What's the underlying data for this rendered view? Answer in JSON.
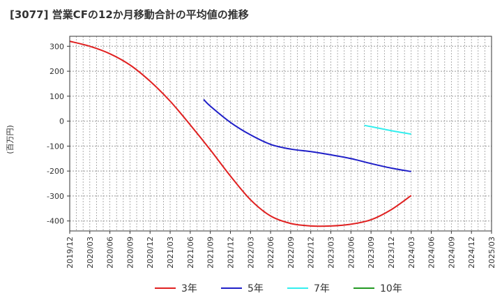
{
  "page": {
    "title": "[3077]  営業CFの12か月移動合計の平均値の推移"
  },
  "chart_data": {
    "type": "line",
    "title": "[3077]  営業CFの12か月移動合計の平均値の推移",
    "ylabel": "(百万円)",
    "xlabel": "",
    "ylim": [
      -440,
      340
    ],
    "yticks": [
      300,
      200,
      100,
      0,
      -100,
      -200,
      -300,
      -400
    ],
    "x_ticks": [
      "2019/12",
      "2020/03",
      "2020/06",
      "2020/09",
      "2020/12",
      "2021/03",
      "2021/06",
      "2021/09",
      "2021/12",
      "2022/03",
      "2022/06",
      "2022/09",
      "2022/12",
      "2023/03",
      "2023/06",
      "2023/09",
      "2023/12",
      "2024/03",
      "2024/06",
      "2024/09",
      "2024/12",
      "2025/03"
    ],
    "grid": true,
    "legend_position": "bottom",
    "series": [
      {
        "name": "3年",
        "color": "#e02020",
        "points": [
          [
            "2019/12",
            320
          ],
          [
            "2020/03",
            300
          ],
          [
            "2020/06",
            270
          ],
          [
            "2020/09",
            225
          ],
          [
            "2020/12",
            160
          ],
          [
            "2021/03",
            80
          ],
          [
            "2021/06",
            -15
          ],
          [
            "2021/09",
            -115
          ],
          [
            "2021/12",
            -220
          ],
          [
            "2022/03",
            -315
          ],
          [
            "2022/06",
            -380
          ],
          [
            "2022/09",
            -410
          ],
          [
            "2022/12",
            -420
          ],
          [
            "2023/03",
            -420
          ],
          [
            "2023/06",
            -413
          ],
          [
            "2023/09",
            -395
          ],
          [
            "2023/12",
            -355
          ],
          [
            "2024/03",
            -298
          ]
        ]
      },
      {
        "name": "5年",
        "color": "#1f1fc8",
        "points": [
          [
            "2021/08",
            87
          ],
          [
            "2021/09",
            60
          ],
          [
            "2021/12",
            -5
          ],
          [
            "2022/03",
            -55
          ],
          [
            "2022/06",
            -93
          ],
          [
            "2022/09",
            -112
          ],
          [
            "2022/12",
            -122
          ],
          [
            "2023/03",
            -135
          ],
          [
            "2023/06",
            -150
          ],
          [
            "2023/09",
            -170
          ],
          [
            "2023/12",
            -188
          ],
          [
            "2024/03",
            -202
          ]
        ]
      },
      {
        "name": "7年",
        "color": "#33eeee",
        "points": [
          [
            "2023/08",
            -17
          ],
          [
            "2023/09",
            -22
          ],
          [
            "2023/12",
            -38
          ],
          [
            "2024/03",
            -52
          ]
        ]
      },
      {
        "name": "10年",
        "color": "#229922",
        "points": []
      }
    ]
  }
}
